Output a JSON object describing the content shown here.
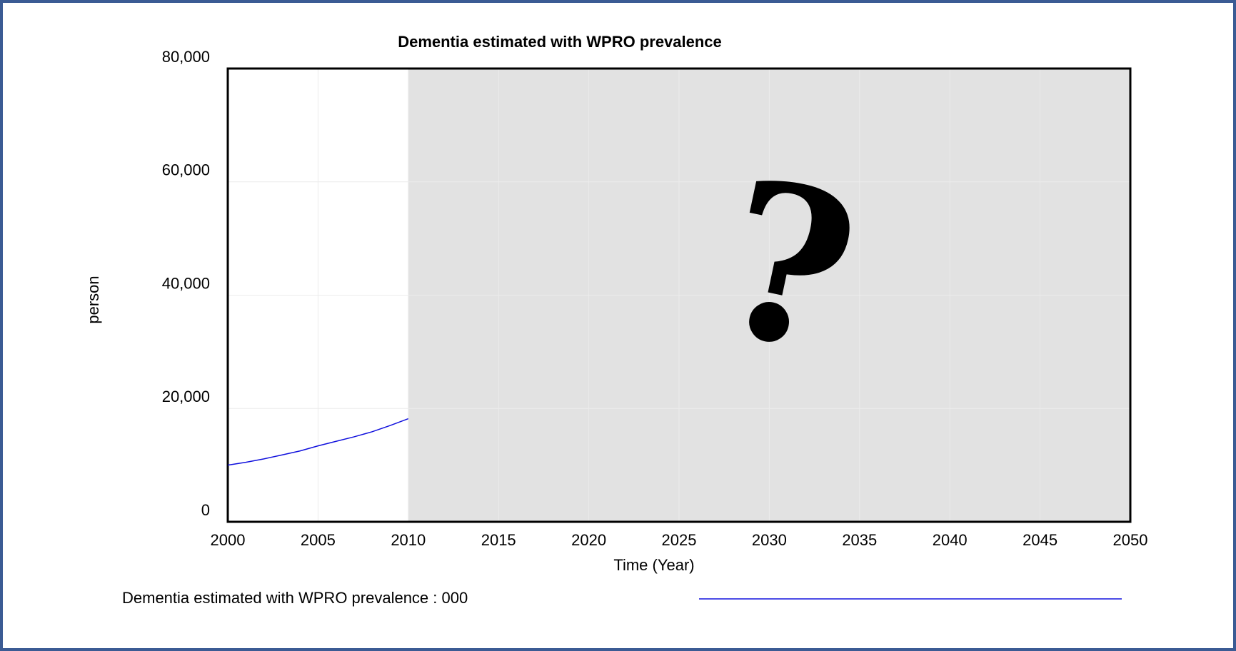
{
  "chart_data": {
    "type": "line",
    "title": "Dementia estimated with WPRO prevalence",
    "x_label": "Time (Year)",
    "y_label": "person",
    "annotation": "?",
    "x": [
      2000,
      2001,
      2002,
      2003,
      2004,
      2005,
      2006,
      2007,
      2008,
      2009,
      2010
    ],
    "series": [
      {
        "name": "Dementia estimated with WPRO prevalence : 000",
        "color": "#1010dd",
        "values": [
          10000,
          10500,
          11100,
          11800,
          12500,
          13400,
          14200,
          15000,
          15900,
          17000,
          18200
        ]
      }
    ],
    "xlim": [
      2000,
      2050
    ],
    "xticks": [
      2000,
      2005,
      2010,
      2015,
      2020,
      2025,
      2030,
      2035,
      2040,
      2045,
      2050
    ],
    "ylim": [
      0,
      80000
    ],
    "yticks": [
      0,
      {
        "value": 20000,
        "label": "20,000"
      },
      {
        "value": 40000,
        "label": "40,000"
      },
      {
        "value": 60000,
        "label": "60,000"
      },
      {
        "value": 80000,
        "label": "80,000"
      }
    ],
    "grid": true
  }
}
